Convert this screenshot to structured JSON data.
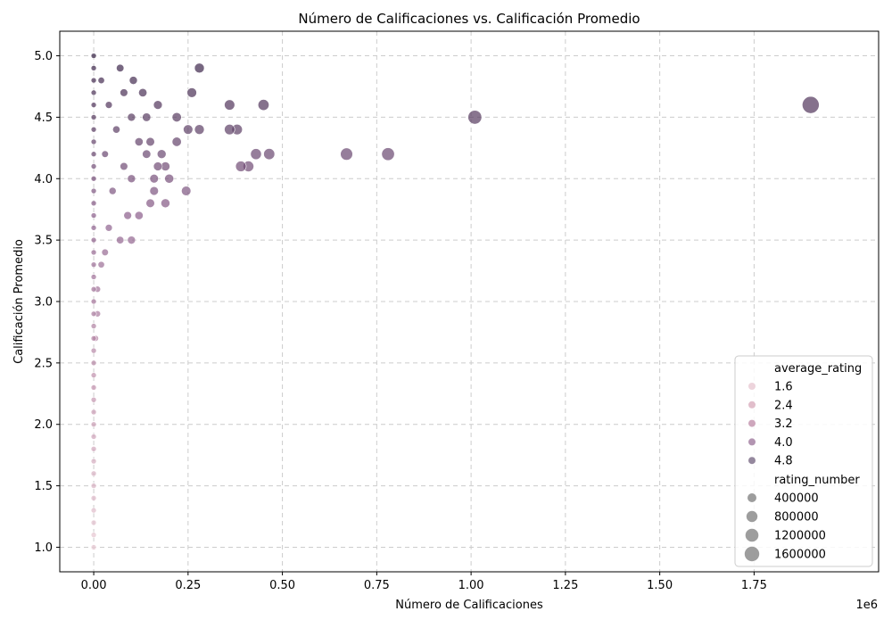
{
  "chart_data": {
    "type": "scatter",
    "title": "Número de Calificaciones vs. Calificación Promedio",
    "xlabel": "Número de Calificaciones",
    "ylabel": "Calificación Promedio",
    "x_offset_label": "1e6",
    "xlim": [
      -0.09,
      2.08
    ],
    "ylim": [
      0.8,
      5.2
    ],
    "xticks": [
      0.0,
      0.25,
      0.5,
      0.75,
      1.0,
      1.25,
      1.5,
      1.75
    ],
    "xtick_labels": [
      "0.00",
      "0.25",
      "0.50",
      "0.75",
      "1.00",
      "1.25",
      "1.50",
      "1.75"
    ],
    "yticks": [
      1.0,
      1.5,
      2.0,
      2.5,
      3.0,
      3.5,
      4.0,
      4.5,
      5.0
    ],
    "ytick_labels": [
      "1.0",
      "1.5",
      "2.0",
      "2.5",
      "3.0",
      "3.5",
      "4.0",
      "4.5",
      "5.0"
    ],
    "grid": true,
    "legend_position": "bottom-right",
    "hue_variable": "average_rating",
    "size_variable": "rating_number",
    "color_legend": [
      {
        "label": "1.6",
        "color": "#e8c9d3"
      },
      {
        "label": "2.4",
        "color": "#d9aebe"
      },
      {
        "label": "3.2",
        "color": "#c291ad"
      },
      {
        "label": "4.0",
        "color": "#a07a9f"
      },
      {
        "label": "4.8",
        "color": "#7a6a86"
      }
    ],
    "size_legend": [
      "400000",
      "800000",
      "1200000",
      "1600000"
    ],
    "x_unit_scale": 1000000,
    "points": [
      {
        "x": 1.9,
        "y": 4.6
      },
      {
        "x": 1.01,
        "y": 4.5
      },
      {
        "x": 0.78,
        "y": 4.2
      },
      {
        "x": 0.67,
        "y": 4.2
      },
      {
        "x": 0.465,
        "y": 4.2
      },
      {
        "x": 0.43,
        "y": 4.2
      },
      {
        "x": 0.45,
        "y": 4.6
      },
      {
        "x": 0.41,
        "y": 4.1
      },
      {
        "x": 0.39,
        "y": 4.1
      },
      {
        "x": 0.38,
        "y": 4.4
      },
      {
        "x": 0.36,
        "y": 4.4
      },
      {
        "x": 0.36,
        "y": 4.6
      },
      {
        "x": 0.28,
        "y": 4.9
      },
      {
        "x": 0.26,
        "y": 4.7
      },
      {
        "x": 0.28,
        "y": 4.4
      },
      {
        "x": 0.25,
        "y": 4.4
      },
      {
        "x": 0.245,
        "y": 3.9
      },
      {
        "x": 0.22,
        "y": 4.5
      },
      {
        "x": 0.22,
        "y": 4.3
      },
      {
        "x": 0.2,
        "y": 4.0
      },
      {
        "x": 0.19,
        "y": 4.1
      },
      {
        "x": 0.19,
        "y": 3.8
      },
      {
        "x": 0.18,
        "y": 4.2
      },
      {
        "x": 0.17,
        "y": 4.6
      },
      {
        "x": 0.17,
        "y": 4.1
      },
      {
        "x": 0.16,
        "y": 4.0
      },
      {
        "x": 0.16,
        "y": 3.9
      },
      {
        "x": 0.15,
        "y": 4.3
      },
      {
        "x": 0.15,
        "y": 3.8
      },
      {
        "x": 0.14,
        "y": 4.5
      },
      {
        "x": 0.14,
        "y": 4.2
      },
      {
        "x": 0.13,
        "y": 4.7
      },
      {
        "x": 0.12,
        "y": 4.3
      },
      {
        "x": 0.12,
        "y": 3.7
      },
      {
        "x": 0.105,
        "y": 4.8
      },
      {
        "x": 0.1,
        "y": 4.5
      },
      {
        "x": 0.1,
        "y": 4.0
      },
      {
        "x": 0.1,
        "y": 3.5
      },
      {
        "x": 0.09,
        "y": 3.7
      },
      {
        "x": 0.08,
        "y": 4.7
      },
      {
        "x": 0.08,
        "y": 4.1
      },
      {
        "x": 0.07,
        "y": 4.9
      },
      {
        "x": 0.07,
        "y": 3.5
      },
      {
        "x": 0.06,
        "y": 4.4
      },
      {
        "x": 0.05,
        "y": 3.9
      },
      {
        "x": 0.04,
        "y": 4.6
      },
      {
        "x": 0.04,
        "y": 3.6
      },
      {
        "x": 0.03,
        "y": 4.2
      },
      {
        "x": 0.03,
        "y": 3.4
      },
      {
        "x": 0.02,
        "y": 4.8
      },
      {
        "x": 0.02,
        "y": 3.3
      },
      {
        "x": 0.01,
        "y": 3.1
      },
      {
        "x": 0.01,
        "y": 2.9
      },
      {
        "x": 0.005,
        "y": 2.7
      },
      {
        "x": 0.0,
        "y": 5.0
      },
      {
        "x": 0.0,
        "y": 4.9
      },
      {
        "x": 0.0,
        "y": 4.8
      },
      {
        "x": 0.0,
        "y": 4.7
      },
      {
        "x": 0.0,
        "y": 4.6
      },
      {
        "x": 0.0,
        "y": 4.5
      },
      {
        "x": 0.0,
        "y": 4.4
      },
      {
        "x": 0.0,
        "y": 4.3
      },
      {
        "x": 0.0,
        "y": 4.2
      },
      {
        "x": 0.0,
        "y": 4.1
      },
      {
        "x": 0.0,
        "y": 4.0
      },
      {
        "x": 0.0,
        "y": 3.9
      },
      {
        "x": 0.0,
        "y": 3.8
      },
      {
        "x": 0.0,
        "y": 3.7
      },
      {
        "x": 0.0,
        "y": 3.6
      },
      {
        "x": 0.0,
        "y": 3.5
      },
      {
        "x": 0.0,
        "y": 3.4
      },
      {
        "x": 0.0,
        "y": 3.3
      },
      {
        "x": 0.0,
        "y": 3.2
      },
      {
        "x": 0.0,
        "y": 3.1
      },
      {
        "x": 0.0,
        "y": 3.0
      },
      {
        "x": 0.0,
        "y": 2.9
      },
      {
        "x": 0.0,
        "y": 2.8
      },
      {
        "x": 0.0,
        "y": 2.7
      },
      {
        "x": 0.0,
        "y": 2.6
      },
      {
        "x": 0.0,
        "y": 2.5
      },
      {
        "x": 0.0,
        "y": 2.4
      },
      {
        "x": 0.0,
        "y": 2.3
      },
      {
        "x": 0.0,
        "y": 2.2
      },
      {
        "x": 0.0,
        "y": 2.1
      },
      {
        "x": 0.0,
        "y": 2.0
      },
      {
        "x": 0.0,
        "y": 1.9
      },
      {
        "x": 0.0,
        "y": 1.8
      },
      {
        "x": 0.0,
        "y": 1.7
      },
      {
        "x": 0.0,
        "y": 1.6
      },
      {
        "x": 0.0,
        "y": 1.5
      },
      {
        "x": 0.0,
        "y": 1.4
      },
      {
        "x": 0.0,
        "y": 1.3
      },
      {
        "x": 0.0,
        "y": 1.2
      },
      {
        "x": 0.0,
        "y": 1.1
      },
      {
        "x": 0.0,
        "y": 1.0
      }
    ]
  }
}
